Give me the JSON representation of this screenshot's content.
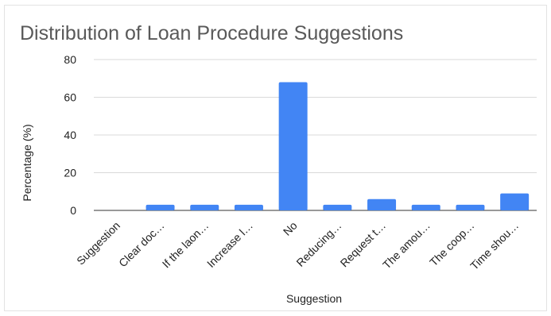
{
  "chart_data": {
    "type": "bar",
    "title": "Distribution of Loan Procedure Suggestions",
    "xlabel": "Suggestion",
    "ylabel": "Percentage (%)",
    "ylim": [
      0,
      80
    ],
    "yticks": [
      0,
      20,
      40,
      60,
      80
    ],
    "grid": true,
    "legend": "none",
    "bar_color": "#4285f4",
    "categories": [
      "Suggestion",
      "Clear doc…",
      "If the laon…",
      "Increase l…",
      "No",
      "Reducing…",
      "Request t…",
      "The amou…",
      "The coop…",
      "Time shou…"
    ],
    "values": [
      0,
      3,
      3,
      3,
      68,
      3,
      6,
      3,
      3,
      9
    ]
  }
}
